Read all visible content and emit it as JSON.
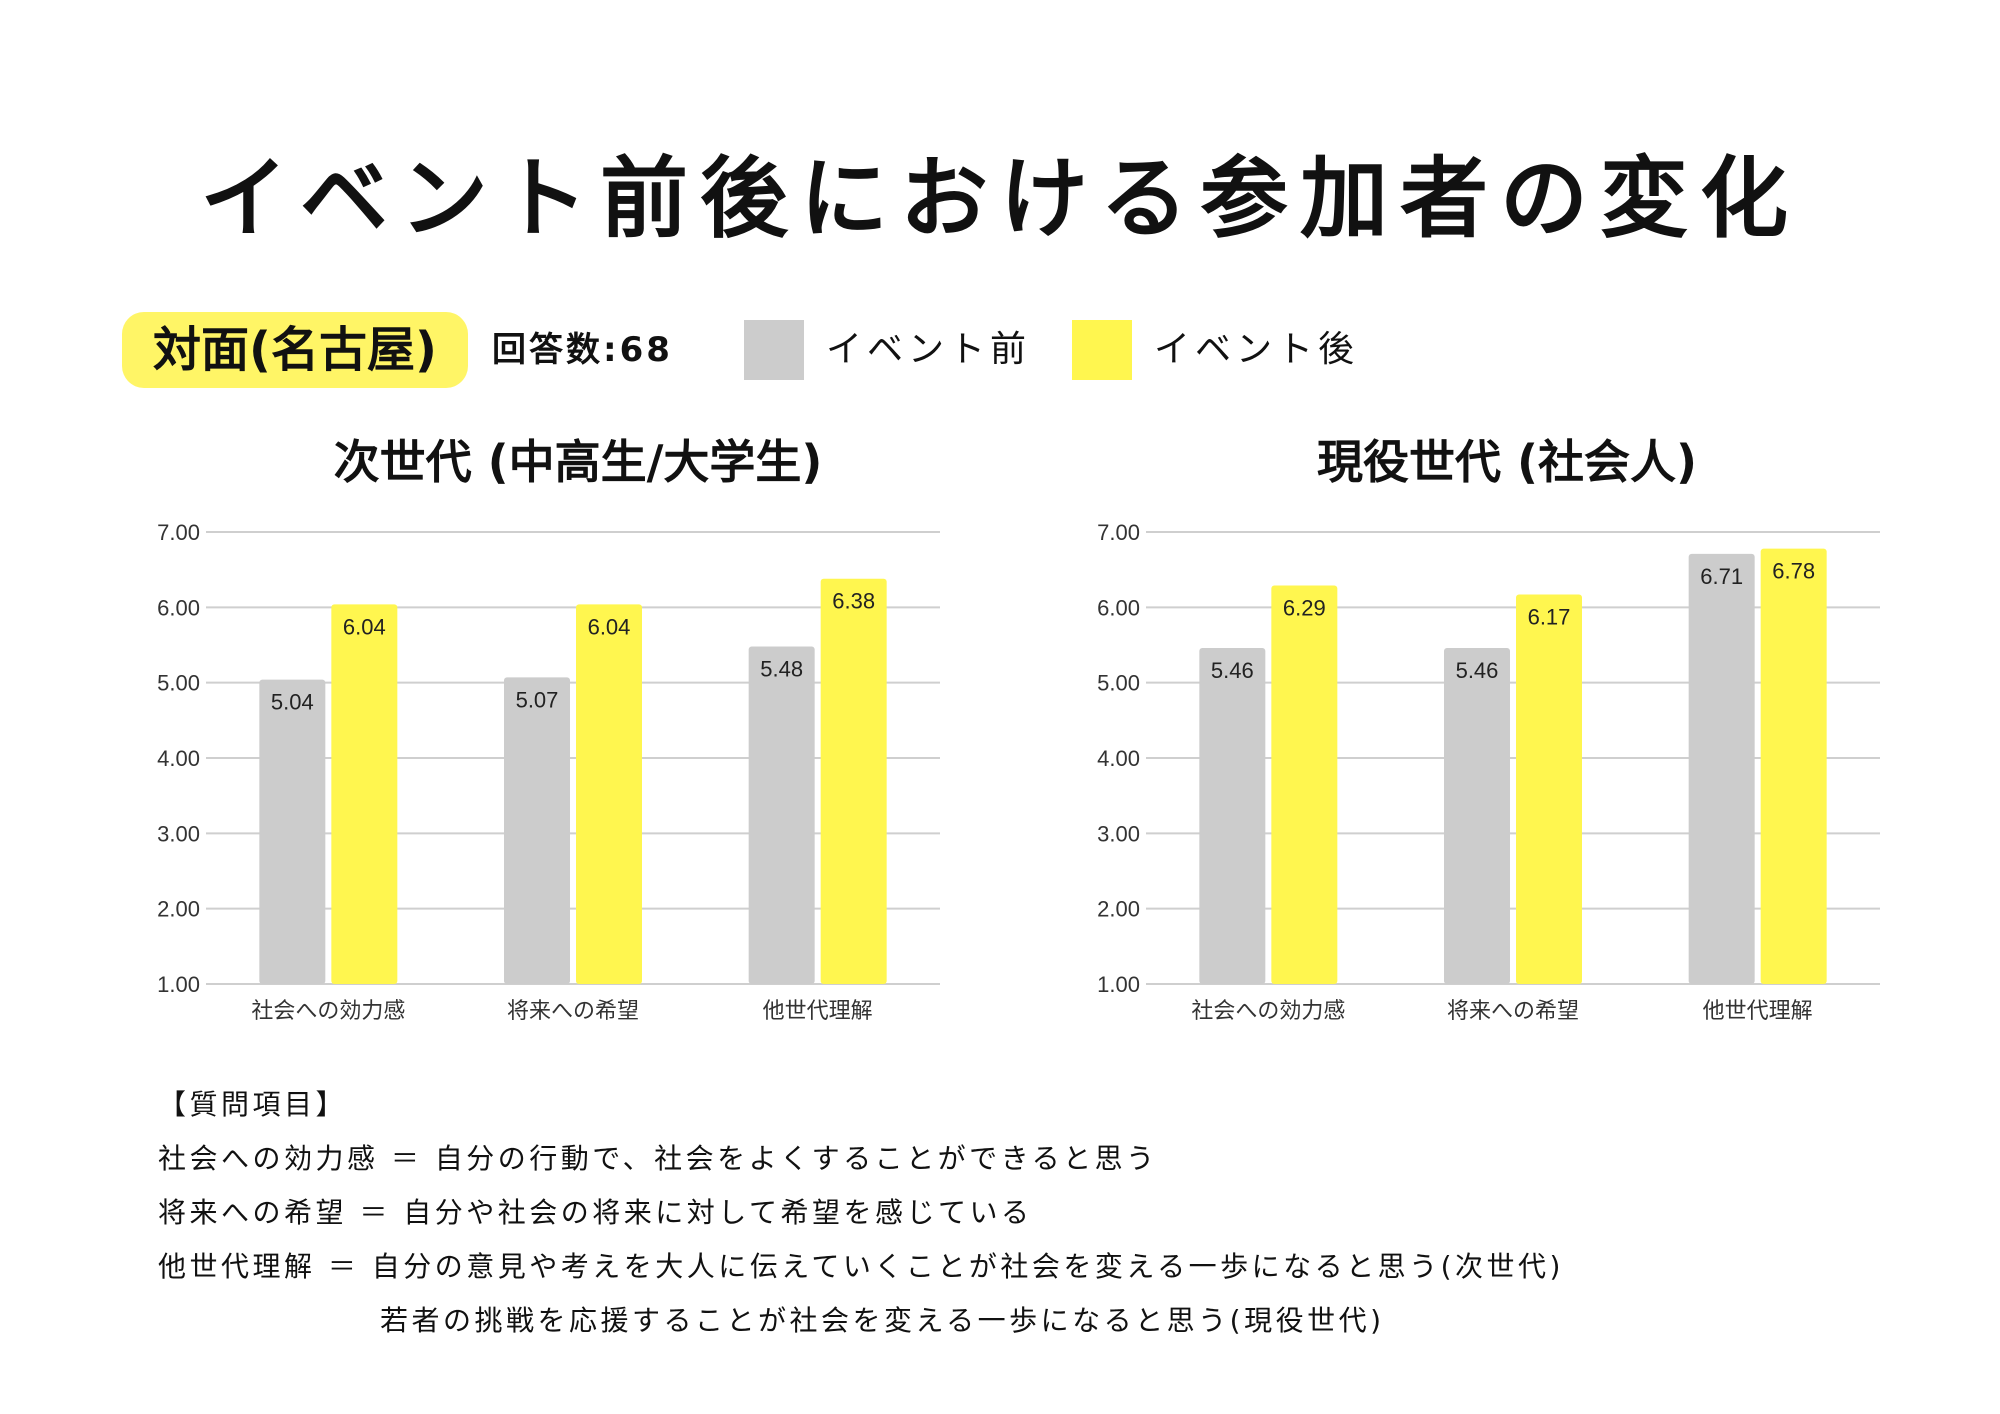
{
  "title": "イベント前後における参加者の変化",
  "badge": "対面(名古屋)",
  "respondents": "回答数:68",
  "legend": {
    "before": {
      "label": "イベント前",
      "color": "#cccccc"
    },
    "after": {
      "label": "イベント後",
      "color": "#fff64f"
    }
  },
  "chart_data": [
    {
      "type": "bar",
      "title": "次世代 (中高生/大学生)",
      "categories": [
        "社会への効力感",
        "将来への希望",
        "他世代理解"
      ],
      "series": [
        {
          "name": "イベント前",
          "values": [
            5.04,
            5.07,
            5.48
          ],
          "labels": [
            "5.04",
            "5.07",
            "5.48"
          ]
        },
        {
          "name": "イベント後",
          "values": [
            6.04,
            6.04,
            6.38
          ],
          "labels": [
            "6.04",
            "6.04",
            "6.38"
          ]
        }
      ],
      "ylim": [
        1,
        7
      ],
      "yticks": [
        "1.00",
        "2.00",
        "3.00",
        "4.00",
        "5.00",
        "6.00",
        "7.00"
      ],
      "xlabel": "",
      "ylabel": ""
    },
    {
      "type": "bar",
      "title": "現役世代 (社会人)",
      "categories": [
        "社会への効力感",
        "将来への希望",
        "他世代理解"
      ],
      "series": [
        {
          "name": "イベント前",
          "values": [
            5.46,
            5.46,
            6.71
          ],
          "labels": [
            "5.46",
            "5.46",
            "6.71"
          ]
        },
        {
          "name": "イベント後",
          "values": [
            6.29,
            6.17,
            6.78
          ],
          "labels": [
            "6.29",
            "6.17",
            "6.78"
          ]
        }
      ],
      "ylim": [
        1,
        7
      ],
      "yticks": [
        "1.00",
        "2.00",
        "3.00",
        "4.00",
        "5.00",
        "6.00",
        "7.00"
      ],
      "xlabel": "",
      "ylabel": ""
    }
  ],
  "notes": {
    "heading": "【質問項目】",
    "lines": [
      "社会への効力感 ＝ 自分の行動で、社会をよくすることができると思う",
      "将来への希望 ＝ 自分や社会の将来に対して希望を感じている",
      "他世代理解 ＝ 自分の意見や考えを大人に伝えていくことが社会を変える一歩になると思う(次世代)",
      "若者の挑戦を応援することが社会を変える一歩になると思う(現役世代)"
    ]
  }
}
